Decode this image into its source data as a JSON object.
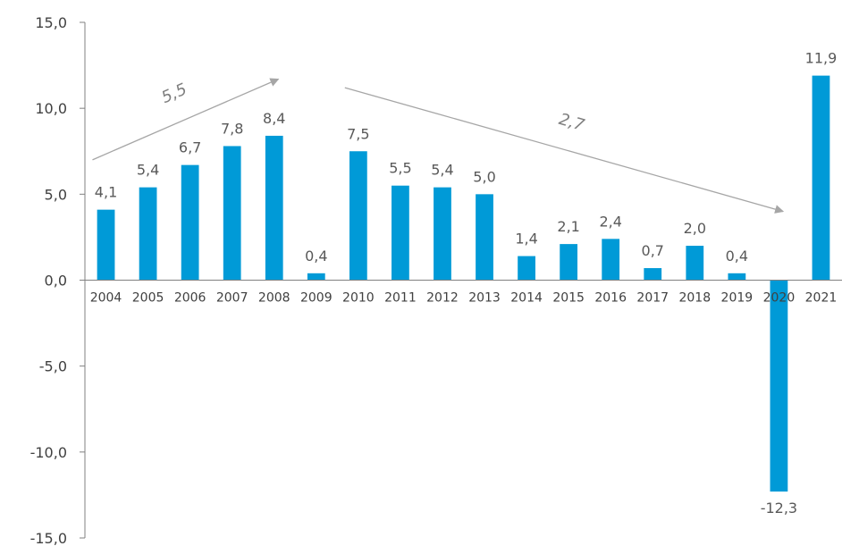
{
  "chart_data": {
    "type": "bar",
    "title": "",
    "xlabel": "",
    "ylabel": "",
    "categories": [
      "2004",
      "2005",
      "2006",
      "2007",
      "2008",
      "2009",
      "2010",
      "2011",
      "2012",
      "2013",
      "2014",
      "2015",
      "2016",
      "2017",
      "2018",
      "2019",
      "2020",
      "2021"
    ],
    "values": [
      4.1,
      5.4,
      6.7,
      7.8,
      8.4,
      0.4,
      7.5,
      5.5,
      5.4,
      5.0,
      1.4,
      2.1,
      2.4,
      0.7,
      2.0,
      0.4,
      -12.3,
      11.9
    ],
    "value_labels": [
      "4,1",
      "5,4",
      "6,7",
      "7,8",
      "8,4",
      "0,4",
      "7,5",
      "5,5",
      "5,4",
      "5,0",
      "1,4",
      "2,1",
      "2,4",
      "0,7",
      "2,0",
      "0,4",
      "-12,3",
      "11,9"
    ],
    "ylim": [
      -15,
      15
    ],
    "yticks": [
      15,
      10,
      5,
      0,
      -5,
      -10,
      -15
    ],
    "ytick_labels": [
      "15,0",
      "10,0",
      "5,0",
      "0,0",
      "-5,0",
      "-10,0",
      "-15,0"
    ],
    "grid": false,
    "bar_color": "#009ad7",
    "annotations": [
      {
        "label": "5,5",
        "from_category": "2004",
        "to_category": "2008",
        "from_y": 7.0,
        "to_y": 11.7
      },
      {
        "label": "2,7",
        "from_category": "2010",
        "to_category": "2020",
        "from_y": 11.2,
        "to_y": 4.0
      }
    ]
  }
}
